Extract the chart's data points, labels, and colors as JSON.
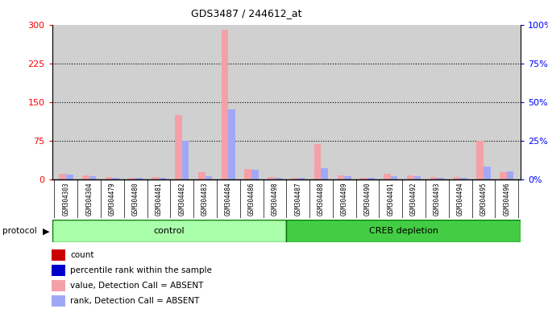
{
  "title": "GDS3487 / 244612_at",
  "samples": [
    "GSM304303",
    "GSM304304",
    "GSM304479",
    "GSM304480",
    "GSM304481",
    "GSM304482",
    "GSM304483",
    "GSM304484",
    "GSM304486",
    "GSM304498",
    "GSM304487",
    "GSM304488",
    "GSM304489",
    "GSM304490",
    "GSM304491",
    "GSM304492",
    "GSM304493",
    "GSM304494",
    "GSM304495",
    "GSM304496"
  ],
  "count_values": [
    10,
    8,
    5,
    2,
    5,
    125,
    14,
    290,
    20,
    5,
    2,
    68,
    8,
    2,
    10,
    8,
    5,
    5,
    75,
    14
  ],
  "rank_values_pct": [
    3,
    2,
    1,
    1,
    1,
    25,
    2,
    45,
    6,
    1,
    1,
    7,
    2,
    1,
    2,
    2,
    1,
    1,
    8,
    5
  ],
  "ylim_left": [
    0,
    300
  ],
  "ylim_right": [
    0,
    100
  ],
  "yticks_left": [
    0,
    75,
    150,
    225,
    300
  ],
  "yticks_right": [
    0,
    25,
    50,
    75,
    100
  ],
  "ytick_labels_left": [
    "0",
    "75",
    "150",
    "225",
    "300"
  ],
  "ytick_labels_right": [
    "0%",
    "25%",
    "50%",
    "75%",
    "100%"
  ],
  "hlines": [
    75,
    150,
    225
  ],
  "n_control": 10,
  "n_creb": 10,
  "color_count_absent": "#f5a0a8",
  "color_rank_absent": "#a0a8f5",
  "color_count_present": "#cc0000",
  "color_rank_present": "#0000cc",
  "plot_bg": "#d0d0d0",
  "xticklabel_bg": "#c8c8c8",
  "control_bg": "#aaffaa",
  "creb_bg": "#44cc44",
  "bar_width": 0.3
}
